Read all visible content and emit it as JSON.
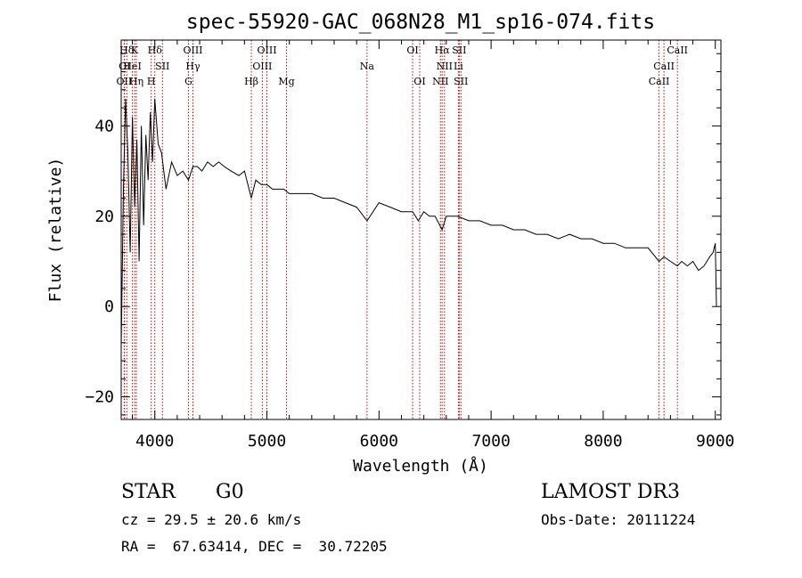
{
  "chart_data": {
    "type": "line",
    "title": "spec-55920-GAC_068N28_M1_sp16-074.fits",
    "xlabel": "Wavelength (Å)",
    "ylabel": "Flux (relative)",
    "xlim": [
      3700,
      9050
    ],
    "ylim": [
      -25,
      59
    ],
    "xticks": [
      4000,
      5000,
      6000,
      7000,
      8000,
      9000
    ],
    "xtick_labels": [
      "4000",
      "5000",
      "6000",
      "7000",
      "8000",
      "9000"
    ],
    "yticks": [
      -20,
      0,
      20,
      40
    ],
    "ytick_labels": [
      "−20",
      "0",
      "20",
      "40"
    ],
    "grid": false,
    "series": [
      {
        "name": "flux",
        "x": [
          3700,
          3720,
          3740,
          3760,
          3780,
          3800,
          3820,
          3840,
          3860,
          3880,
          3900,
          3920,
          3940,
          3960,
          3980,
          4000,
          4030,
          4060,
          4100,
          4150,
          4200,
          4250,
          4300,
          4340,
          4380,
          4420,
          4470,
          4520,
          4570,
          4620,
          4680,
          4750,
          4800,
          4861,
          4900,
          4950,
          5000,
          5050,
          5100,
          5150,
          5200,
          5300,
          5400,
          5500,
          5600,
          5700,
          5800,
          5893,
          6000,
          6100,
          6200,
          6300,
          6350,
          6400,
          6450,
          6500,
          6563,
          6600,
          6650,
          6700,
          6800,
          6900,
          7000,
          7100,
          7200,
          7300,
          7400,
          7500,
          7600,
          7700,
          7800,
          7900,
          8000,
          8100,
          8200,
          8300,
          8400,
          8498,
          8542,
          8600,
          8662,
          8700,
          8750,
          8800,
          8850,
          8900,
          8950,
          8980,
          9000,
          9010
        ],
        "y": [
          -9,
          26,
          46,
          34,
          12,
          42,
          22,
          37,
          10,
          40,
          18,
          38,
          28,
          43,
          32,
          46,
          36,
          34,
          26,
          32,
          29,
          30,
          28,
          31,
          31,
          30,
          32,
          31,
          32,
          31,
          30,
          29,
          30,
          24,
          28,
          27,
          27,
          26,
          26,
          26,
          25,
          25,
          25,
          24,
          24,
          23,
          22,
          19,
          23,
          22,
          21,
          21,
          19,
          21,
          20,
          20,
          17,
          20,
          20,
          20,
          19,
          19,
          18,
          18,
          17,
          17,
          16,
          16,
          15,
          16,
          15,
          15,
          14,
          14,
          13,
          13,
          13,
          10,
          11,
          10,
          9,
          10,
          9,
          10,
          8,
          9,
          11,
          12,
          14,
          0
        ]
      }
    ],
    "lines_top": [
      {
        "name": "Hδ",
        "x": 3750
      },
      {
        "name": "K",
        "x": 3820
      },
      {
        "name": "Hδ",
        "x": 4000
      },
      {
        "name": "OIII",
        "x": 4340
      },
      {
        "name": "OIII",
        "x": 5000
      },
      {
        "name": "OI",
        "x": 6300
      },
      {
        "name": "Hα",
        "x": 6563
      },
      {
        "name": "SII",
        "x": 6716
      },
      {
        "name": "CaII",
        "x": 8662
      }
    ],
    "lines_mid": [
      {
        "name": "OI",
        "x": 3730
      },
      {
        "name": "HeI",
        "x": 3800
      },
      {
        "name": "SII",
        "x": 4068
      },
      {
        "name": "Hγ",
        "x": 4340
      },
      {
        "name": "OIII",
        "x": 4959
      },
      {
        "name": "Na",
        "x": 5893
      },
      {
        "name": "NII",
        "x": 6584
      },
      {
        "name": "Li",
        "x": 6708
      },
      {
        "name": "CaII",
        "x": 8542
      }
    ],
    "lines_bot": [
      {
        "name": "OII",
        "x": 3727
      },
      {
        "name": "Hη",
        "x": 3835
      },
      {
        "name": "H",
        "x": 3968
      },
      {
        "name": "G",
        "x": 4300
      },
      {
        "name": "Hβ",
        "x": 4861
      },
      {
        "name": "Mg",
        "x": 5175
      },
      {
        "name": "OI",
        "x": 6363
      },
      {
        "name": "NII",
        "x": 6548
      },
      {
        "name": "SII",
        "x": 6731
      },
      {
        "name": "CaII",
        "x": 8498
      }
    ],
    "line_marker_color": "#cc0000"
  },
  "info": {
    "class_label": "STAR",
    "subclass": "G0",
    "survey": "LAMOST DR3",
    "cz_text": "cz = 29.5 ± 20.6 km/s",
    "obs_date": "Obs-Date: 20111224",
    "radec": "RA =  67.63414, DEC =  30.72205"
  }
}
